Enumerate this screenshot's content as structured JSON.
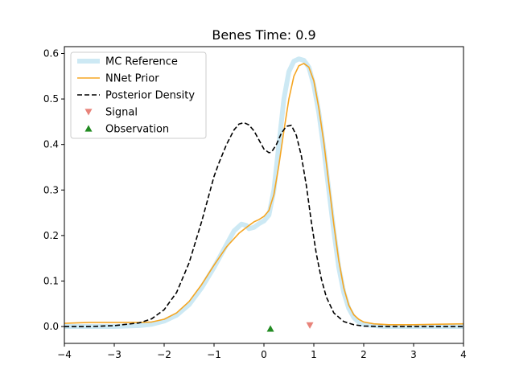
{
  "chart_data": {
    "type": "line",
    "title": "Benes Time: 0.9",
    "xlabel": "",
    "ylabel": "",
    "xlim": [
      -4,
      4
    ],
    "ylim": [
      -0.037,
      0.615
    ],
    "x_ticks": [
      -4,
      -3,
      -2,
      -1,
      0,
      1,
      2,
      3,
      4
    ],
    "x_tick_labels": [
      "−4",
      "−3",
      "−2",
      "−1",
      "0",
      "1",
      "2",
      "3",
      "4"
    ],
    "y_ticks": [
      0.0,
      0.1,
      0.2,
      0.3,
      0.4,
      0.5,
      0.6
    ],
    "y_tick_labels": [
      "0.0",
      "0.1",
      "0.2",
      "0.3",
      "0.4",
      "0.5",
      "0.6"
    ],
    "grid": false,
    "legend_position": "top-left",
    "series": [
      {
        "name": "MC Reference",
        "style": "thick-solid",
        "color": "#cde9f4",
        "x": [
          -4,
          -3.5,
          -3,
          -2.5,
          -2.25,
          -2,
          -1.75,
          -1.5,
          -1.25,
          -1,
          -0.75,
          -0.6,
          -0.45,
          -0.35,
          -0.3,
          -0.2,
          -0.1,
          0,
          0.1,
          0.2,
          0.3,
          0.4,
          0.5,
          0.6,
          0.7,
          0.8,
          0.9,
          1.0,
          1.1,
          1.2,
          1.3,
          1.4,
          1.5,
          1.6,
          1.7,
          1.8,
          1.9,
          2.0,
          2.2,
          2.4,
          2.6,
          3,
          3.5,
          4
        ],
        "y": [
          0.0,
          0.0,
          0.0,
          0.002,
          0.005,
          0.012,
          0.025,
          0.048,
          0.085,
          0.13,
          0.18,
          0.21,
          0.225,
          0.222,
          0.215,
          0.218,
          0.226,
          0.232,
          0.245,
          0.3,
          0.4,
          0.5,
          0.56,
          0.583,
          0.588,
          0.585,
          0.57,
          0.53,
          0.47,
          0.39,
          0.3,
          0.21,
          0.13,
          0.075,
          0.04,
          0.02,
          0.01,
          0.005,
          0.002,
          0.0,
          0.0,
          0.0,
          0.0,
          0.0
        ]
      },
      {
        "name": "NNet Prior",
        "style": "solid",
        "color": "#f5a623",
        "x": [
          -4,
          -3.5,
          -3,
          -2.5,
          -2.25,
          -2,
          -1.75,
          -1.5,
          -1.25,
          -1,
          -0.75,
          -0.5,
          -0.3,
          -0.2,
          -0.1,
          0,
          0.1,
          0.2,
          0.3,
          0.4,
          0.5,
          0.6,
          0.7,
          0.8,
          0.9,
          1.0,
          1.1,
          1.2,
          1.3,
          1.4,
          1.5,
          1.6,
          1.7,
          1.8,
          1.9,
          2.0,
          2.2,
          2.5,
          3,
          3.5,
          4
        ],
        "y": [
          0.007,
          0.009,
          0.009,
          0.009,
          0.01,
          0.016,
          0.03,
          0.055,
          0.092,
          0.135,
          0.175,
          0.205,
          0.222,
          0.23,
          0.235,
          0.242,
          0.255,
          0.29,
          0.355,
          0.43,
          0.5,
          0.55,
          0.573,
          0.578,
          0.57,
          0.54,
          0.48,
          0.405,
          0.315,
          0.225,
          0.145,
          0.085,
          0.047,
          0.026,
          0.016,
          0.01,
          0.006,
          0.004,
          0.004,
          0.005,
          0.006
        ]
      },
      {
        "name": "Posterior Density",
        "style": "dashed",
        "color": "#000000",
        "x": [
          -4,
          -3.5,
          -3,
          -2.5,
          -2.25,
          -2,
          -1.75,
          -1.5,
          -1.25,
          -1,
          -0.9,
          -0.75,
          -0.6,
          -0.5,
          -0.4,
          -0.3,
          -0.2,
          -0.1,
          0,
          0.1,
          0.15,
          0.25,
          0.35,
          0.45,
          0.55,
          0.65,
          0.75,
          0.85,
          0.95,
          1.05,
          1.15,
          1.25,
          1.4,
          1.6,
          1.8,
          2,
          2.5,
          3,
          4
        ],
        "y": [
          0.0,
          0.0,
          0.002,
          0.008,
          0.017,
          0.037,
          0.075,
          0.14,
          0.23,
          0.33,
          0.36,
          0.4,
          0.432,
          0.445,
          0.448,
          0.443,
          0.43,
          0.41,
          0.39,
          0.382,
          0.383,
          0.4,
          0.425,
          0.44,
          0.442,
          0.42,
          0.375,
          0.31,
          0.23,
          0.16,
          0.105,
          0.065,
          0.03,
          0.011,
          0.004,
          0.001,
          0.0,
          0.0,
          0.0
        ]
      },
      {
        "name": "Signal",
        "style": "marker-triangle-down",
        "color": "#e8837a",
        "x": [
          0.92
        ],
        "y": [
          0.003
        ]
      },
      {
        "name": "Observation",
        "style": "marker-triangle-up",
        "color": "#228b22",
        "x": [
          0.13
        ],
        "y": [
          -0.005
        ]
      }
    ]
  }
}
